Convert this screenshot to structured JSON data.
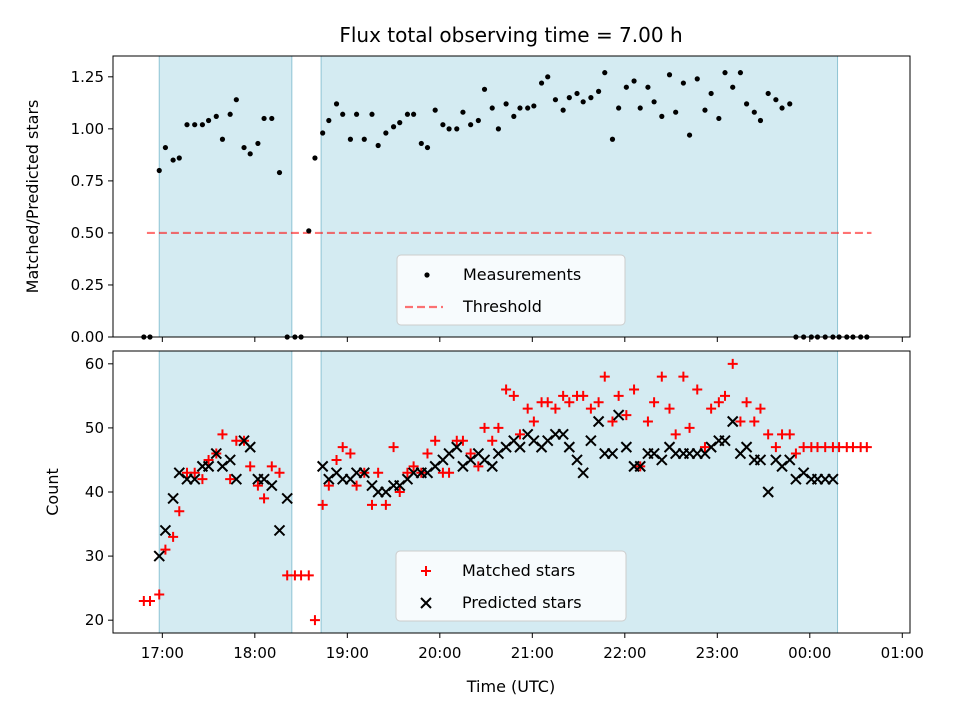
{
  "figure": {
    "title": "Flux total observing time = 7.00 h",
    "xlabel": "Time (UTC)"
  },
  "colors": {
    "span_fill": "#add8e6",
    "threshold": "#ff0000",
    "matched": "#ff0000",
    "predicted": "#000000",
    "measurement": "#000000"
  },
  "chart_data": [
    {
      "type": "scatter",
      "ylabel": "Matched/Predicted stars",
      "xlim": [
        "16:28",
        "01:05"
      ],
      "ylim": [
        0,
        1.35
      ],
      "x_ticks": [
        "17:00",
        "18:00",
        "19:00",
        "20:00",
        "21:00",
        "22:00",
        "23:00",
        "00:00",
        "01:00"
      ],
      "y_ticks": [
        "0.00",
        "0.25",
        "0.50",
        "0.75",
        "1.00",
        "1.25"
      ],
      "observing_spans": [
        [
          "16:58",
          "18:24"
        ],
        [
          "18:43",
          "00:18"
        ]
      ],
      "threshold": {
        "y": 0.5,
        "x_range": [
          "16:50",
          "00:40"
        ]
      },
      "legend_position": "lower center",
      "series": [
        {
          "name": "Measurements",
          "marker": "dot",
          "x": [
            "16:48",
            "16:52",
            "16:58",
            "17:02",
            "17:07",
            "17:11",
            "17:16",
            "17:21",
            "17:26",
            "17:30",
            "17:35",
            "17:39",
            "17:44",
            "17:48",
            "17:53",
            "17:57",
            "18:02",
            "18:06",
            "18:11",
            "18:16",
            "18:21",
            "18:26",
            "18:30",
            "18:35",
            "18:39",
            "18:44",
            "18:48",
            "18:53",
            "18:57",
            "19:02",
            "19:06",
            "19:11",
            "19:16",
            "19:20",
            "19:25",
            "19:30",
            "19:34",
            "19:39",
            "19:43",
            "19:48",
            "19:52",
            "19:57",
            "20:02",
            "20:06",
            "20:11",
            "20:15",
            "20:20",
            "20:25",
            "20:29",
            "20:34",
            "20:38",
            "20:43",
            "20:48",
            "20:52",
            "20:57",
            "21:01",
            "21:06",
            "21:10",
            "21:15",
            "21:20",
            "21:24",
            "21:29",
            "21:33",
            "21:38",
            "21:43",
            "21:47",
            "21:52",
            "21:56",
            "22:01",
            "22:06",
            "22:10",
            "22:15",
            "22:19",
            "22:24",
            "22:29",
            "22:33",
            "22:38",
            "22:42",
            "22:47",
            "22:52",
            "22:56",
            "23:01",
            "23:05",
            "23:10",
            "23:15",
            "23:19",
            "23:24",
            "23:28",
            "23:33",
            "23:38",
            "23:42",
            "23:47",
            "23:51",
            "23:56",
            "00:01",
            "00:05",
            "00:10",
            "00:15",
            "00:19",
            "00:24",
            "00:28",
            "00:33",
            "00:37"
          ],
          "y": [
            0.0,
            0.0,
            0.8,
            0.91,
            0.85,
            0.86,
            1.02,
            1.02,
            1.02,
            1.04,
            1.06,
            0.95,
            1.07,
            1.14,
            0.91,
            0.88,
            0.93,
            1.05,
            1.05,
            0.79,
            0.0,
            0.0,
            0.0,
            0.51,
            0.86,
            0.98,
            1.04,
            1.12,
            1.07,
            0.95,
            1.07,
            0.95,
            1.07,
            0.92,
            0.98,
            1.01,
            1.03,
            1.07,
            1.07,
            0.93,
            0.91,
            1.09,
            1.02,
            1.0,
            1.0,
            1.08,
            1.02,
            1.04,
            1.19,
            1.1,
            1.0,
            1.12,
            1.06,
            1.1,
            1.1,
            1.11,
            1.22,
            1.25,
            1.14,
            1.09,
            1.15,
            1.17,
            1.13,
            1.15,
            1.18,
            1.27,
            0.95,
            1.1,
            1.2,
            1.23,
            1.1,
            1.2,
            1.13,
            1.06,
            1.26,
            1.08,
            1.22,
            0.97,
            1.24,
            1.09,
            1.17,
            1.05,
            1.27,
            1.2,
            1.27,
            1.12,
            1.08,
            1.04,
            1.17,
            1.14,
            1.1,
            1.12,
            0.0,
            0.0,
            0.0,
            0.0,
            0.0,
            0.0,
            0.0,
            0.0,
            0.0,
            0.0,
            0.0
          ]
        }
      ]
    },
    {
      "type": "scatter",
      "ylabel": "Count",
      "xlim": [
        "16:28",
        "01:05"
      ],
      "ylim": [
        18,
        62
      ],
      "x_ticks": [
        "17:00",
        "18:00",
        "19:00",
        "20:00",
        "21:00",
        "22:00",
        "23:00",
        "00:00",
        "01:00"
      ],
      "y_ticks": [
        "20",
        "30",
        "40",
        "50",
        "60"
      ],
      "observing_spans": [
        [
          "16:58",
          "18:24"
        ],
        [
          "18:43",
          "00:18"
        ]
      ],
      "legend_position": "lower center",
      "series": [
        {
          "name": "Matched stars",
          "marker": "plus",
          "x": [
            "16:48",
            "16:52",
            "16:58",
            "17:02",
            "17:07",
            "17:11",
            "17:16",
            "17:21",
            "17:26",
            "17:30",
            "17:35",
            "17:39",
            "17:44",
            "17:48",
            "17:53",
            "17:57",
            "18:02",
            "18:06",
            "18:11",
            "18:16",
            "18:21",
            "18:26",
            "18:30",
            "18:35",
            "18:39",
            "18:44",
            "18:48",
            "18:53",
            "18:57",
            "19:02",
            "19:06",
            "19:11",
            "19:16",
            "19:20",
            "19:25",
            "19:30",
            "19:34",
            "19:39",
            "19:43",
            "19:48",
            "19:52",
            "19:57",
            "20:02",
            "20:06",
            "20:11",
            "20:15",
            "20:20",
            "20:25",
            "20:29",
            "20:34",
            "20:38",
            "20:43",
            "20:48",
            "20:52",
            "20:57",
            "21:01",
            "21:06",
            "21:10",
            "21:15",
            "21:20",
            "21:24",
            "21:29",
            "21:33",
            "21:38",
            "21:43",
            "21:47",
            "21:52",
            "21:56",
            "22:01",
            "22:06",
            "22:10",
            "22:15",
            "22:19",
            "22:24",
            "22:29",
            "22:33",
            "22:38",
            "22:42",
            "22:47",
            "22:52",
            "22:56",
            "23:01",
            "23:05",
            "23:10",
            "23:15",
            "23:19",
            "23:24",
            "23:28",
            "23:33",
            "23:38",
            "23:42",
            "23:47",
            "23:51",
            "23:56",
            "00:01",
            "00:05",
            "00:10",
            "00:15",
            "00:19",
            "00:24",
            "00:28",
            "00:33",
            "00:37"
          ],
          "y": [
            23,
            23,
            24,
            31,
            33,
            37,
            43,
            43,
            42,
            45,
            46,
            49,
            42,
            48,
            48,
            44,
            41,
            39,
            44,
            43,
            27,
            27,
            27,
            27,
            20,
            38,
            41,
            45,
            47,
            46,
            41,
            43,
            38,
            43,
            38,
            47,
            40,
            43,
            44,
            43,
            46,
            48,
            43,
            43,
            48,
            48,
            46,
            44,
            50,
            48,
            50,
            56,
            55,
            49,
            53,
            51,
            54,
            54,
            53,
            55,
            54,
            55,
            55,
            53,
            54,
            58,
            51,
            55,
            52,
            56,
            44,
            51,
            54,
            58,
            53,
            49,
            58,
            50,
            56,
            47,
            53,
            54,
            55,
            60,
            51,
            54,
            51,
            53,
            49,
            47,
            49,
            49,
            46,
            47,
            47,
            47,
            47,
            47,
            47,
            47,
            47,
            47,
            47
          ]
        },
        {
          "name": "Predicted stars",
          "marker": "x",
          "x": [
            "16:58",
            "17:02",
            "17:07",
            "17:11",
            "17:16",
            "17:21",
            "17:26",
            "17:30",
            "17:35",
            "17:39",
            "17:44",
            "17:48",
            "17:53",
            "17:57",
            "18:02",
            "18:06",
            "18:11",
            "18:16",
            "18:21",
            "18:44",
            "18:48",
            "18:53",
            "18:57",
            "19:02",
            "19:06",
            "19:11",
            "19:16",
            "19:20",
            "19:25",
            "19:30",
            "19:34",
            "19:39",
            "19:43",
            "19:48",
            "19:52",
            "19:57",
            "20:02",
            "20:06",
            "20:11",
            "20:15",
            "20:20",
            "20:25",
            "20:29",
            "20:34",
            "20:38",
            "20:43",
            "20:48",
            "20:52",
            "20:57",
            "21:01",
            "21:06",
            "21:10",
            "21:15",
            "21:20",
            "21:24",
            "21:29",
            "21:33",
            "21:38",
            "21:43",
            "21:47",
            "21:52",
            "21:56",
            "22:01",
            "22:06",
            "22:10",
            "22:15",
            "22:19",
            "22:24",
            "22:29",
            "22:33",
            "22:38",
            "22:42",
            "22:47",
            "22:52",
            "22:56",
            "23:01",
            "23:05",
            "23:10",
            "23:15",
            "23:19",
            "23:24",
            "23:28",
            "23:33",
            "23:38",
            "23:42",
            "23:47",
            "23:51",
            "23:56",
            "00:01",
            "00:05",
            "00:10",
            "00:15"
          ],
          "y": [
            30,
            34,
            39,
            43,
            42,
            42,
            44,
            44,
            46,
            44,
            45,
            42,
            48,
            47,
            42,
            42,
            41,
            34,
            39,
            44,
            42,
            43,
            42,
            42,
            43,
            43,
            41,
            40,
            40,
            41,
            41,
            42,
            43,
            43,
            43,
            44,
            45,
            46,
            47,
            44,
            45,
            46,
            45,
            44,
            46,
            47,
            48,
            47,
            49,
            48,
            47,
            48,
            49,
            49,
            47,
            45,
            43,
            48,
            51,
            46,
            46,
            52,
            47,
            44,
            44,
            46,
            46,
            45,
            47,
            46,
            46,
            46,
            46,
            46,
            47,
            48,
            48,
            51,
            46,
            47,
            45,
            45,
            40,
            45,
            44,
            45,
            42,
            43,
            42,
            42,
            42,
            42
          ]
        }
      ]
    }
  ]
}
